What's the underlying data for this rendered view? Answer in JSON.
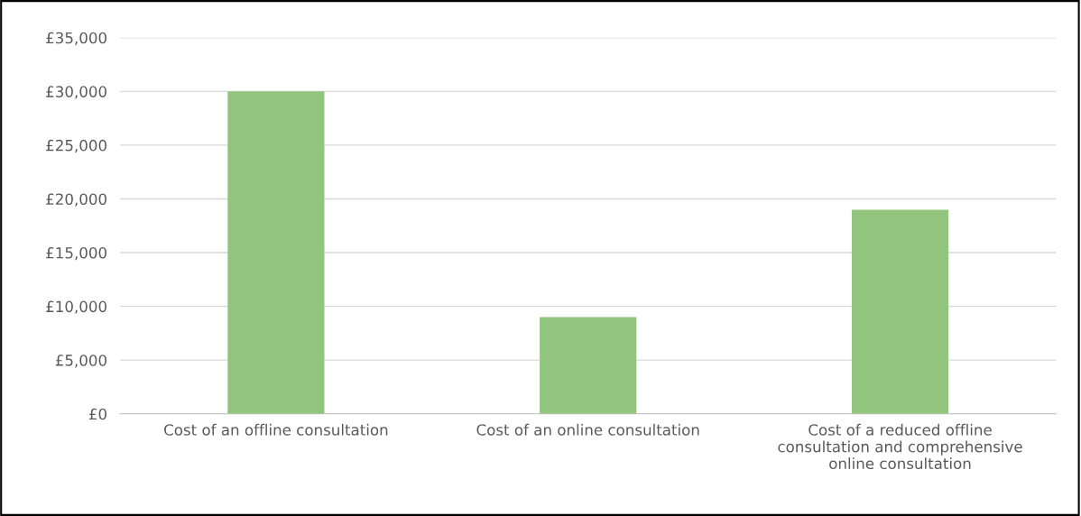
{
  "chart_data": {
    "type": "bar",
    "categories": [
      "Cost of an offline consultation",
      "Cost of an online consultation",
      "Cost of a reduced offline\nconsultation and comprehensive\nonline consultation"
    ],
    "values": [
      30000,
      9000,
      19000
    ],
    "color": "#93c47d",
    "ylim": [
      0,
      35000
    ],
    "yticks": [
      {
        "value": 0,
        "label": "£0"
      },
      {
        "value": 5000,
        "label": "£5,000"
      },
      {
        "value": 10000,
        "label": "£10,000"
      },
      {
        "value": 15000,
        "label": "£15,000"
      },
      {
        "value": 20000,
        "label": "£20,000"
      },
      {
        "value": 25000,
        "label": "£25,000"
      },
      {
        "value": 30000,
        "label": "£30,000"
      },
      {
        "value": 35000,
        "label": "£35,000"
      }
    ],
    "grid": "y"
  }
}
